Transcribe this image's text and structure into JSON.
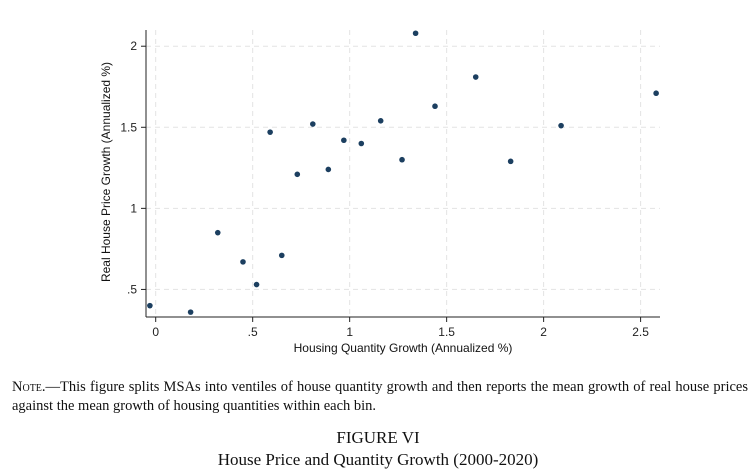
{
  "chart_data": {
    "type": "scatter",
    "title": "",
    "xlabel": "Housing Quantity Growth (Annualized %)",
    "ylabel": "Real House Price Growth (Annualized %)",
    "xlim": [
      -0.05,
      2.6
    ],
    "ylim": [
      0.33,
      2.1
    ],
    "xticks": [
      0,
      0.5,
      1,
      1.5,
      2,
      2.5
    ],
    "xtick_labels": [
      "0",
      ".5",
      "1",
      "1.5",
      "2",
      "2.5"
    ],
    "yticks": [
      0.5,
      1,
      1.5,
      2
    ],
    "ytick_labels": [
      ".5",
      "1",
      "1.5",
      "2"
    ],
    "grid": true,
    "marker_color": "#1c3f60",
    "points": [
      {
        "x": -0.03,
        "y": 0.4
      },
      {
        "x": 0.18,
        "y": 0.36
      },
      {
        "x": 0.32,
        "y": 0.85
      },
      {
        "x": 0.45,
        "y": 0.67
      },
      {
        "x": 0.52,
        "y": 0.53
      },
      {
        "x": 0.59,
        "y": 1.47
      },
      {
        "x": 0.65,
        "y": 0.71
      },
      {
        "x": 0.73,
        "y": 1.21
      },
      {
        "x": 0.81,
        "y": 1.52
      },
      {
        "x": 0.89,
        "y": 1.24
      },
      {
        "x": 0.97,
        "y": 1.42
      },
      {
        "x": 1.06,
        "y": 1.4
      },
      {
        "x": 1.16,
        "y": 1.54
      },
      {
        "x": 1.27,
        "y": 1.3
      },
      {
        "x": 1.34,
        "y": 2.08
      },
      {
        "x": 1.44,
        "y": 1.63
      },
      {
        "x": 1.65,
        "y": 1.81
      },
      {
        "x": 1.83,
        "y": 1.29
      },
      {
        "x": 2.09,
        "y": 1.51
      },
      {
        "x": 2.58,
        "y": 1.71
      }
    ]
  },
  "note": {
    "label": "Note.",
    "text": "—This figure splits MSAs into ventiles of house quantity growth and then reports the mean growth of real house prices against the mean growth of housing quantities within each bin."
  },
  "figure": {
    "number": "FIGURE VI",
    "title": "House Price and Quantity Growth (2000-2020)"
  }
}
